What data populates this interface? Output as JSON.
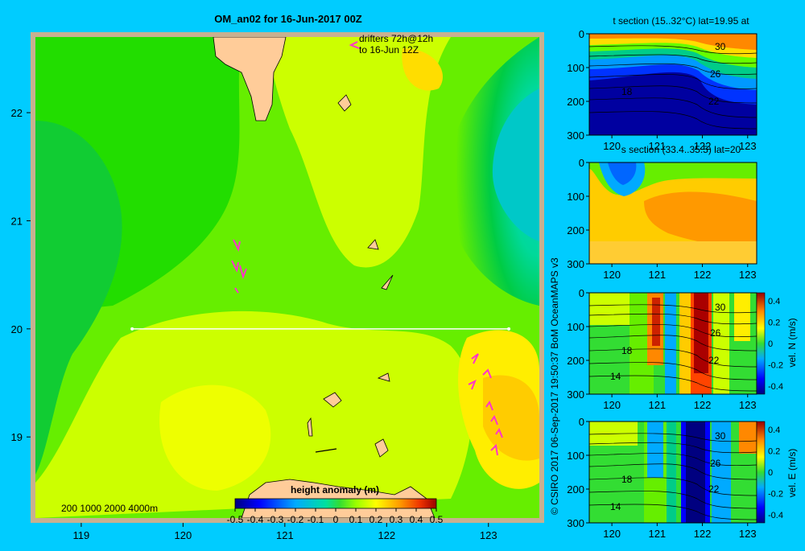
{
  "header": {
    "title": "OM_an02 for 16-Jun-2017 00Z"
  },
  "colors": {
    "background": "#00ccff",
    "frame": "#c8b090",
    "land": "#ffcc99",
    "drifter": "#ff33cc",
    "section_line": "#ffffff"
  },
  "map": {
    "drifter_label_1": "drifters 72h@12h",
    "drifter_label_2": "to 16-Jun 12Z",
    "bathy_label": "200  1000  2000  4000m",
    "colorbar_title": "height anomaly (m)",
    "colorbar_ticks": [
      "-0.5",
      "-0.4",
      "-0.3",
      "-0.2",
      "-0.1",
      "0",
      "0.1",
      "0.2",
      "0.3",
      "0.4",
      "0.5"
    ]
  },
  "credit": "© CSIRO 2017   06-Sep-2017 19:50:37 BoM OceanMAPS v3",
  "chart_data": [
    {
      "type": "heatmap",
      "title": "OM_an02 for 16-Jun-2017 00Z",
      "variable": "height anomaly (m)",
      "x_ticks": [
        119,
        120,
        121,
        122,
        123
      ],
      "y_ticks": [
        19,
        20,
        21,
        22
      ],
      "xlim": [
        118.55,
        123.5
      ],
      "ylim": [
        18.25,
        22.7
      ],
      "color_range": [
        -0.5,
        0.5
      ],
      "section_line": {
        "lat": 20,
        "lon": [
          119.5,
          123.2
        ]
      },
      "annotations": [
        "drifters 72h@12h",
        "to 16-Jun 12Z",
        "200  1000  2000  4000m"
      ]
    },
    {
      "type": "heatmap",
      "title": "t section (15..32°C) lat=19.95 at",
      "x_ticks": [
        120,
        121,
        122,
        123
      ],
      "y_ticks": [
        0,
        100,
        200,
        300
      ],
      "xlim": [
        119.5,
        123.2
      ],
      "ylim": [
        300,
        0
      ],
      "contour_labels": [
        "30",
        "26",
        "22",
        "18"
      ]
    },
    {
      "type": "heatmap",
      "title": "s section (33.4..35.5) lat=20",
      "x_ticks": [
        120,
        121,
        122,
        123
      ],
      "y_ticks": [
        0,
        100,
        200,
        300
      ],
      "xlim": [
        119.5,
        123.2
      ],
      "ylim": [
        300,
        0
      ]
    },
    {
      "type": "heatmap",
      "title": "vel. N (m/s)",
      "x_ticks": [
        120,
        121,
        122,
        123
      ],
      "y_ticks": [
        0,
        100,
        200,
        300
      ],
      "xlim": [
        119.5,
        123.2
      ],
      "ylim": [
        300,
        0
      ],
      "color_range": [
        -0.4,
        0.4
      ],
      "colorbar_ticks": [
        "0.4",
        "0.2",
        "0",
        "-0.2",
        "-0.4"
      ],
      "contour_labels": [
        "30",
        "26",
        "22",
        "18",
        "14"
      ]
    },
    {
      "type": "heatmap",
      "title": "vel. E (m/s)",
      "x_ticks": [
        120,
        121,
        122,
        123
      ],
      "y_ticks": [
        0,
        100,
        200,
        300
      ],
      "xlim": [
        119.5,
        123.2
      ],
      "ylim": [
        300,
        0
      ],
      "color_range": [
        -0.4,
        0.4
      ],
      "colorbar_ticks": [
        "0.4",
        "0.2",
        "0",
        "-0.2",
        "-0.4"
      ],
      "contour_labels": [
        "30",
        "26",
        "22",
        "18",
        "14"
      ]
    }
  ]
}
